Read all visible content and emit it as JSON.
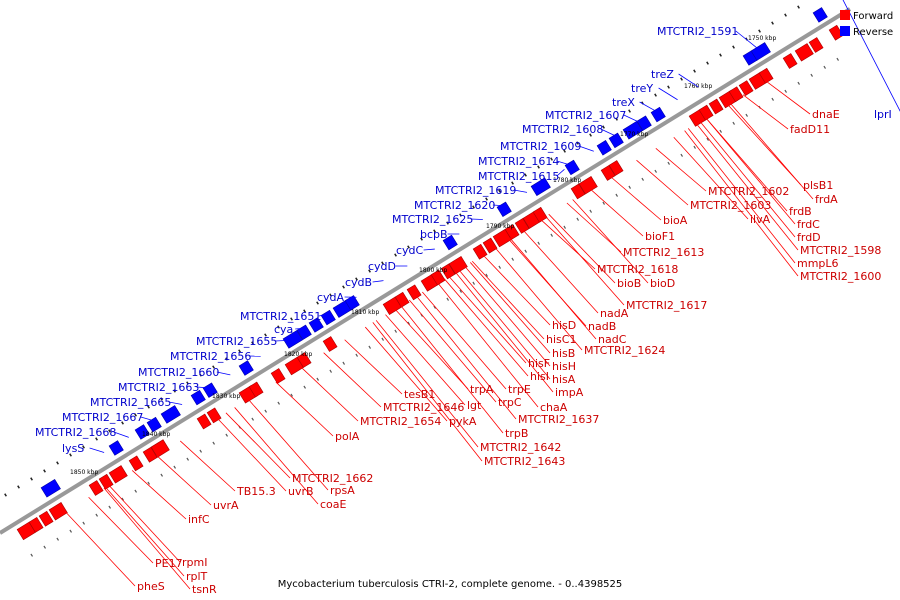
{
  "caption": "Mycobacterium tuberculosis CTRI-2, complete genome. - 0..4398525",
  "legend": [
    {
      "label": "Forward",
      "color": "#ff0000"
    },
    {
      "label": "Reverse",
      "color": "#0000ff"
    }
  ],
  "colors": {
    "forward": "#ff0000",
    "reverse": "#0000ff",
    "forward_label": "#cc0000",
    "reverse_label": "#0000cc",
    "backbone": "#999999"
  },
  "kbp_ticks": [
    "1750 kbp",
    "1760 kbp",
    "1770 kbp",
    "1780 kbp",
    "1790 kbp",
    "1800 kbp",
    "1810 kbp",
    "1820 kbp",
    "1830 kbp",
    "1840 kbp",
    "1850 kbp"
  ],
  "forward_labels": [
    "dnaE",
    "fadD11",
    "plsB1",
    "frdA",
    "frdB",
    "frdC",
    "frdD",
    "MTCTRI2_1598",
    "mmpL6",
    "MTCTRI2_1600",
    "MTCTRI2_1602",
    "MTCTRI2_1603",
    "ilvA",
    "bioA",
    "bioF1",
    "MTCTRI2_1613",
    "MTCTRI2_1618",
    "bioB",
    "bioD",
    "MTCTRI2_1617",
    "nadA",
    "nadB",
    "nadC",
    "hisD",
    "hisC1",
    "hisB",
    "MTCTRI2_1624",
    "hisF",
    "hisH",
    "hisI",
    "hisA",
    "impA",
    "trpE",
    "chaA",
    "trpC",
    "MTCTRI2_1637",
    "trpA",
    "trpB",
    "lgt",
    "MTCTRI2_1642",
    "MTCTRI2_1643",
    "pykA",
    "tesB1",
    "MTCTRI2_1646",
    "MTCTRI2_1654",
    "polA",
    "MTCTRI2_1662",
    "rpsA",
    "uvrB",
    "coaE",
    "TB15.3",
    "uvrA",
    "infC",
    "PE17",
    "rpmI",
    "rplT",
    "tsnR",
    "pheS"
  ],
  "reverse_labels": [
    "MTCTRI2_1591",
    "lprI",
    "treZ",
    "treY",
    "treX",
    "MTCTRI2_1607",
    "MTCTRI2_1608",
    "MTCTRI2_1609",
    "MTCTRI2_1614",
    "MTCTRI2_1615",
    "MTCTRI2_1619",
    "MTCTRI2_1620",
    "MTCTRI2_1625",
    "bcpB",
    "cydC",
    "cydD",
    "cydB",
    "cydA",
    "MTCTRI2_1651",
    "cya",
    "MTCTRI2_1655",
    "MTCTRI2_1656",
    "MTCTRI2_1660",
    "MTCTRI2_1663",
    "MTCTRI2_1665",
    "MTCTRI2_1667",
    "MTCTRI2_1668",
    "lysS"
  ]
}
